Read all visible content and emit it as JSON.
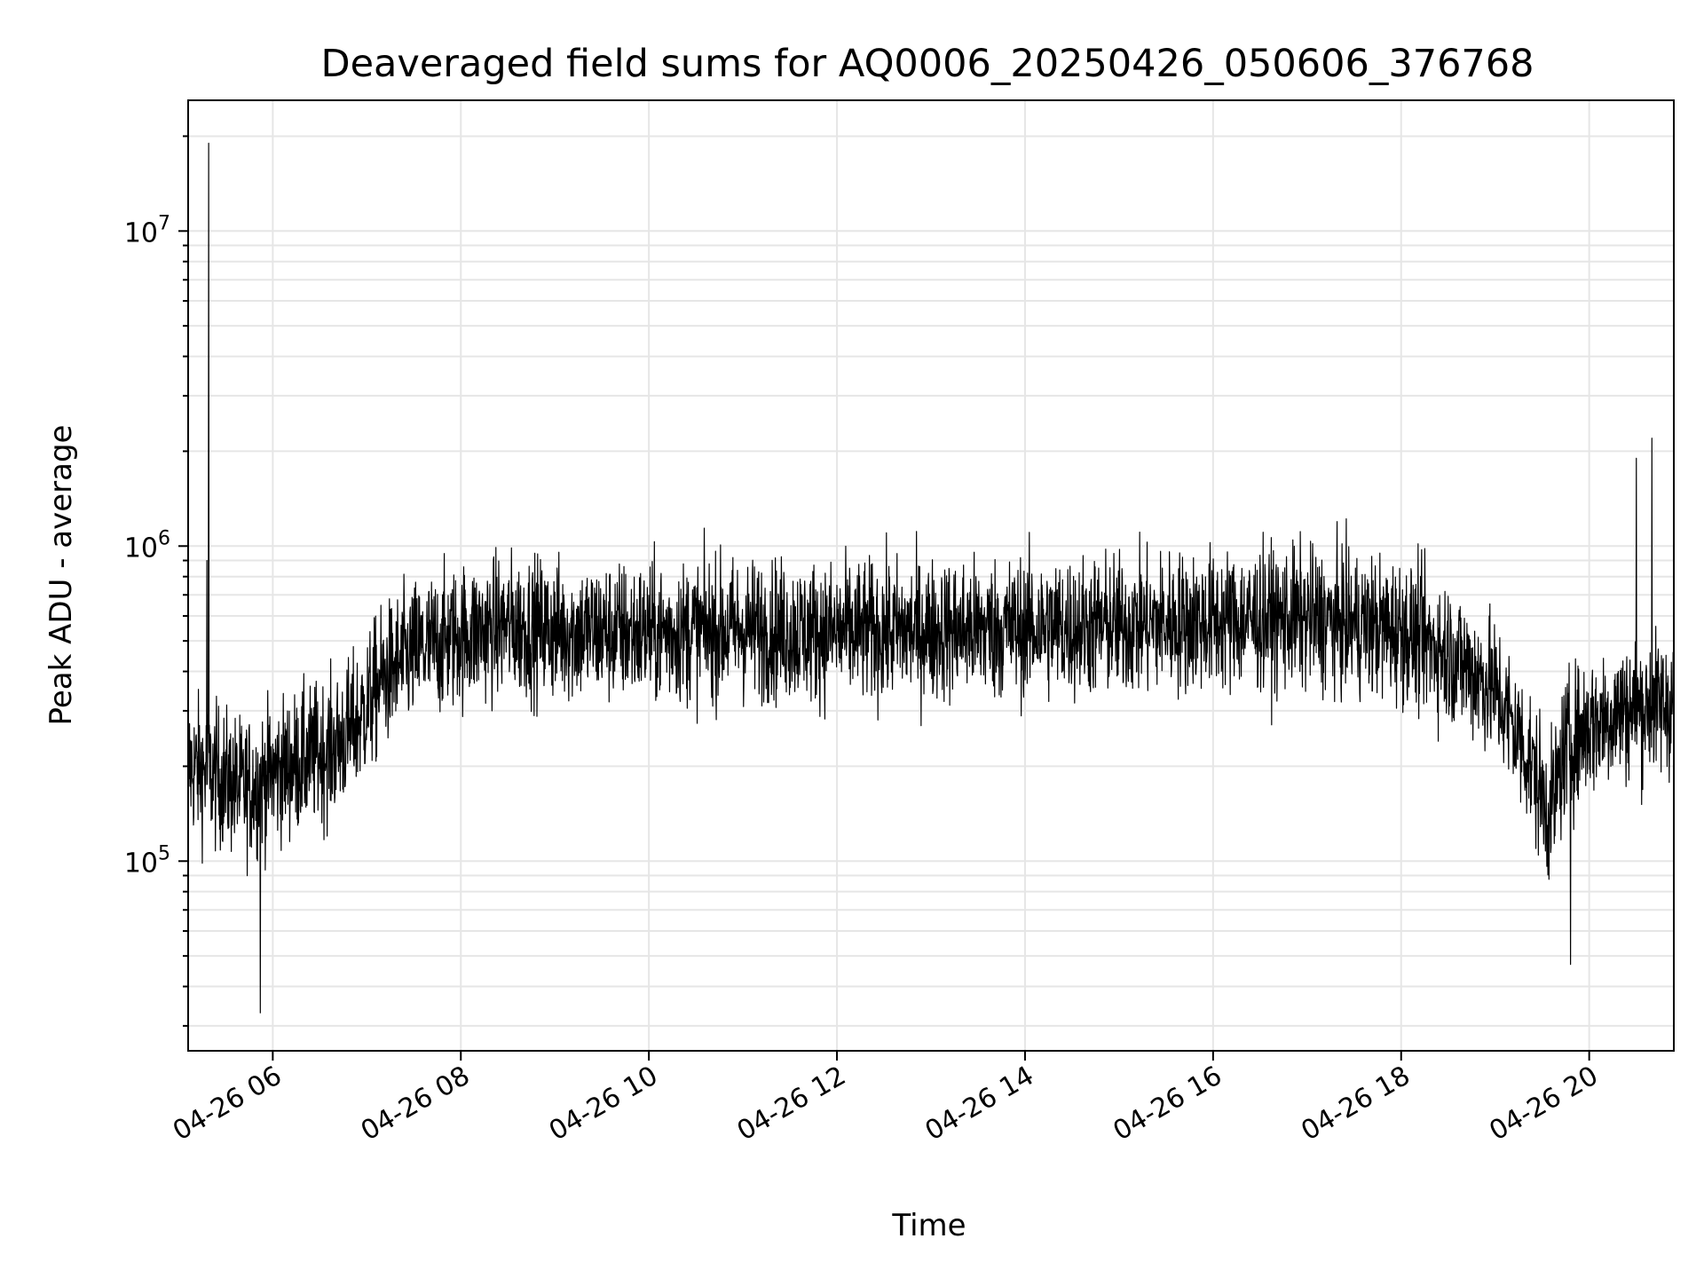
{
  "chart_data": {
    "type": "line",
    "title": "Deaveraged field sums for AQ0006_20250426_050606_376768",
    "xlabel": "Time",
    "ylabel": "Peak ADU - average",
    "y_scale": "log",
    "ylim": [
      25000,
      26000000
    ],
    "xlim": [
      "2025-04-26 05:06",
      "2025-04-26 20:54"
    ],
    "grid": true,
    "line_color": "#000000",
    "grid_color": "#e6e6e6",
    "x_ticks": [
      {
        "label": "04-26 06",
        "time": "2025-04-26 06:00"
      },
      {
        "label": "04-26 08",
        "time": "2025-04-26 08:00"
      },
      {
        "label": "04-26 10",
        "time": "2025-04-26 10:00"
      },
      {
        "label": "04-26 12",
        "time": "2025-04-26 12:00"
      },
      {
        "label": "04-26 14",
        "time": "2025-04-26 14:00"
      },
      {
        "label": "04-26 16",
        "time": "2025-04-26 16:00"
      },
      {
        "label": "04-26 18",
        "time": "2025-04-26 18:00"
      },
      {
        "label": "04-26 20",
        "time": "2025-04-26 20:00"
      }
    ],
    "y_ticks": [
      {
        "value": 100000,
        "base": "10",
        "exp": "5"
      },
      {
        "value": 1000000,
        "base": "10",
        "exp": "6"
      },
      {
        "value": 10000000,
        "base": "10",
        "exp": "7"
      }
    ],
    "series": [
      {
        "x": [
          "2025-04-26 05:06",
          "2025-04-26 05:20",
          "2025-04-26 05:30",
          "2025-04-26 05:40",
          "2025-04-26 05:50",
          "2025-04-26 06:00",
          "2025-04-26 06:20",
          "2025-04-26 06:40",
          "2025-04-26 06:55",
          "2025-04-26 07:10",
          "2025-04-26 07:30",
          "2025-04-26 08:00",
          "2025-04-26 08:30",
          "2025-04-26 09:00",
          "2025-04-26 10:00",
          "2025-04-26 11:00",
          "2025-04-26 12:00",
          "2025-04-26 13:00",
          "2025-04-26 14:00",
          "2025-04-26 15:00",
          "2025-04-26 16:00",
          "2025-04-26 17:00",
          "2025-04-26 18:00",
          "2025-04-26 18:30",
          "2025-04-26 19:00",
          "2025-04-26 19:20",
          "2025-04-26 19:35",
          "2025-04-26 19:45",
          "2025-04-26 20:00",
          "2025-04-26 20:20",
          "2025-04-26 20:40",
          "2025-04-26 20:54"
        ],
        "y": [
          200000,
          190000,
          180000,
          170000,
          175000,
          190000,
          210000,
          230000,
          280000,
          380000,
          460000,
          520000,
          560000,
          540000,
          530000,
          545000,
          530000,
          540000,
          550000,
          560000,
          580000,
          590000,
          540000,
          460000,
          350000,
          220000,
          140000,
          230000,
          270000,
          300000,
          310000,
          320000
        ],
        "peaks": [
          {
            "x": "2025-04-26 05:19",
            "y": 19000000
          },
          {
            "x": "2025-04-26 05:18",
            "y": 900000
          },
          {
            "x": "2025-04-26 05:52",
            "y": 33000
          },
          {
            "x": "2025-04-26 19:48",
            "y": 47000
          },
          {
            "x": "2025-04-26 20:40",
            "y": 2200000
          },
          {
            "x": "2025-04-26 20:30",
            "y": 1900000
          }
        ]
      }
    ]
  }
}
